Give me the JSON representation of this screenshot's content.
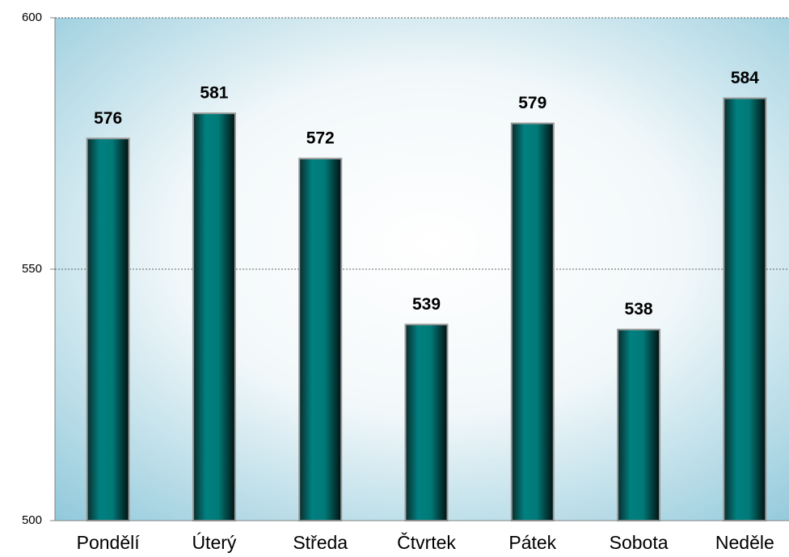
{
  "chart_data": {
    "type": "bar",
    "categories": [
      "Pondělí",
      "Úterý",
      "Středa",
      "Čtvrtek",
      "Pátek",
      "Sobota",
      "Neděle"
    ],
    "values": [
      576,
      581,
      572,
      539,
      579,
      538,
      584
    ],
    "color": "#008080",
    "ylim": [
      500,
      600
    ],
    "yticks": [
      500,
      550,
      600
    ],
    "grid": true
  }
}
